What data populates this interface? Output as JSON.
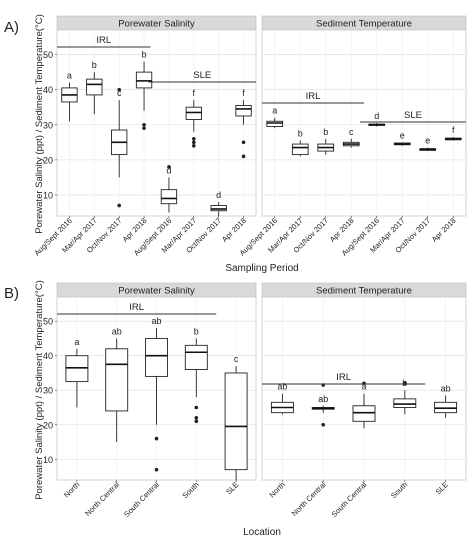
{
  "chart_data": [
    {
      "type": "box",
      "panel_label": "A)",
      "facets": [
        "Porewater Salinity",
        "Sediment Temperature"
      ],
      "categories": [
        "Aug/Sept 2016",
        "Mar/Apr 2017",
        "Oct/Nov 2017",
        "Apr 2018",
        "Aug/Sept 2016",
        "Mar/Apr 2017",
        "Oct/Nov 2017",
        "Apr 2018"
      ],
      "groups": [
        {
          "label": "IRL",
          "from": 0,
          "to": 3
        },
        {
          "label": "SLE",
          "from": 4,
          "to": 7
        }
      ],
      "xlabel": "Sampling Period",
      "ylabel": "Porewater Salinity (ppt) / Sediment Temperature(°C)",
      "yticks": [
        10,
        20,
        30,
        40,
        50
      ],
      "ylim": [
        4,
        57
      ],
      "series": [
        {
          "facet": "Porewater Salinity",
          "boxes": [
            {
              "category": "Aug/Sept 2016",
              "min": 31,
              "q1": 36.5,
              "median": 38.5,
              "q3": 40.5,
              "max": 42,
              "outliers": [],
              "letter": "a"
            },
            {
              "category": "Mar/Apr 2017",
              "min": 33,
              "q1": 38.5,
              "median": 41.5,
              "q3": 43,
              "max": 45,
              "outliers": [],
              "letter": "b"
            },
            {
              "category": "Oct/Nov 2017",
              "min": 15,
              "q1": 21.5,
              "median": 25,
              "q3": 28.5,
              "max": 37,
              "outliers": [
                7,
                40
              ],
              "letter": "c"
            },
            {
              "category": "Apr 2018",
              "min": 34,
              "q1": 40.5,
              "median": 42.5,
              "q3": 45,
              "max": 48,
              "outliers": [
                29,
                30
              ],
              "letter": "b"
            },
            {
              "category": "Aug/Sept 2016",
              "min": 5,
              "q1": 7.5,
              "median": 9,
              "q3": 11.5,
              "max": 15,
              "outliers": [
                18
              ],
              "letter": "d"
            },
            {
              "category": "Mar/Apr 2017",
              "min": 28,
              "q1": 31.5,
              "median": 33.5,
              "q3": 35,
              "max": 37,
              "outliers": [
                24,
                25,
                26
              ],
              "letter": "f"
            },
            {
              "category": "Oct/Nov 2017",
              "min": 4,
              "q1": 5.5,
              "median": 6,
              "q3": 7,
              "max": 8,
              "outliers": [],
              "letter": "d"
            },
            {
              "category": "Apr 2018",
              "min": 30,
              "q1": 32.5,
              "median": 34.5,
              "q3": 35.5,
              "max": 37,
              "outliers": [
                21,
                25
              ],
              "letter": "f"
            }
          ]
        },
        {
          "facet": "Sediment Temperature",
          "boxes": [
            {
              "category": "Aug/Sept 2016",
              "min": 29,
              "q1": 29.5,
              "median": 30.5,
              "q3": 31,
              "max": 32,
              "outliers": [],
              "letter": "a"
            },
            {
              "category": "Mar/Apr 2017",
              "min": 21,
              "q1": 21.5,
              "median": 23.5,
              "q3": 24.5,
              "max": 25.5,
              "outliers": [],
              "letter": "b"
            },
            {
              "category": "Oct/Nov 2017",
              "min": 21.5,
              "q1": 22.5,
              "median": 23.5,
              "q3": 24.5,
              "max": 26,
              "outliers": [],
              "letter": "b"
            },
            {
              "category": "Apr 2018",
              "min": 23.5,
              "q1": 24,
              "median": 24.5,
              "q3": 25,
              "max": 26,
              "outliers": [],
              "letter": "c"
            },
            {
              "category": "Aug/Sept 2016",
              "min": 29.5,
              "q1": 29.8,
              "median": 30,
              "q3": 30.2,
              "max": 30.5,
              "outliers": [],
              "letter": "d"
            },
            {
              "category": "Mar/Apr 2017",
              "min": 24,
              "q1": 24.3,
              "median": 24.5,
              "q3": 24.8,
              "max": 25,
              "outliers": [],
              "letter": "e"
            },
            {
              "category": "Oct/Nov 2017",
              "min": 22.5,
              "q1": 22.7,
              "median": 23,
              "q3": 23.2,
              "max": 23.5,
              "outliers": [],
              "letter": "e"
            },
            {
              "category": "Apr 2018",
              "min": 25.5,
              "q1": 25.7,
              "median": 26,
              "q3": 26.2,
              "max": 26.5,
              "outliers": [],
              "letter": "f"
            }
          ]
        }
      ]
    },
    {
      "type": "box",
      "panel_label": "B)",
      "facets": [
        "Porewater Salinity",
        "Sediment Temperature"
      ],
      "categories": [
        "North",
        "North Central",
        "South Central",
        "South",
        "SLE"
      ],
      "groups": [
        {
          "label": "IRL",
          "from": 0,
          "to": 3
        }
      ],
      "xlabel": "Location",
      "ylabel": "Porewater Salinity (ppt) / Sediment Temperature(°C)",
      "yticks": [
        10,
        20,
        30,
        40,
        50
      ],
      "ylim": [
        4,
        57
      ],
      "series": [
        {
          "facet": "Porewater Salinity",
          "boxes": [
            {
              "category": "North",
              "min": 25,
              "q1": 32.5,
              "median": 36.5,
              "q3": 40,
              "max": 42,
              "outliers": [],
              "letter": "a"
            },
            {
              "category": "North Central",
              "min": 15,
              "q1": 24,
              "median": 37.5,
              "q3": 42,
              "max": 45,
              "outliers": [],
              "letter": "ab"
            },
            {
              "category": "South Central",
              "min": 20,
              "q1": 34,
              "median": 40,
              "q3": 45,
              "max": 48,
              "outliers": [
                7,
                16
              ],
              "letter": "ab"
            },
            {
              "category": "South",
              "min": 28,
              "q1": 36,
              "median": 41,
              "q3": 43,
              "max": 45,
              "outliers": [
                21,
                22,
                25
              ],
              "letter": "b"
            },
            {
              "category": "SLE",
              "min": 4,
              "q1": 7,
              "median": 19.5,
              "q3": 35,
              "max": 37,
              "outliers": [],
              "letter": "c"
            }
          ]
        },
        {
          "facet": "Sediment Temperature",
          "boxes": [
            {
              "category": "North",
              "min": 23,
              "q1": 23.5,
              "median": 25,
              "q3": 26.5,
              "max": 29,
              "outliers": [],
              "letter": "ab"
            },
            {
              "category": "North Central",
              "min": 23.5,
              "q1": 24.5,
              "median": 24.8,
              "q3": 25,
              "max": 25.5,
              "outliers": [
                20,
                31.5
              ],
              "letter": "ab"
            },
            {
              "category": "South Central",
              "min": 19,
              "q1": 21,
              "median": 23.5,
              "q3": 25.5,
              "max": 29,
              "outliers": [
                32
              ],
              "letter": "a"
            },
            {
              "category": "South",
              "min": 23,
              "q1": 25,
              "median": 26,
              "q3": 27.5,
              "max": 30,
              "outliers": [
                32
              ],
              "letter": "b"
            },
            {
              "category": "SLE",
              "min": 22,
              "q1": 23.5,
              "median": 24.8,
              "q3": 26.5,
              "max": 28.5,
              "outliers": [],
              "letter": "ab"
            }
          ]
        }
      ]
    }
  ]
}
